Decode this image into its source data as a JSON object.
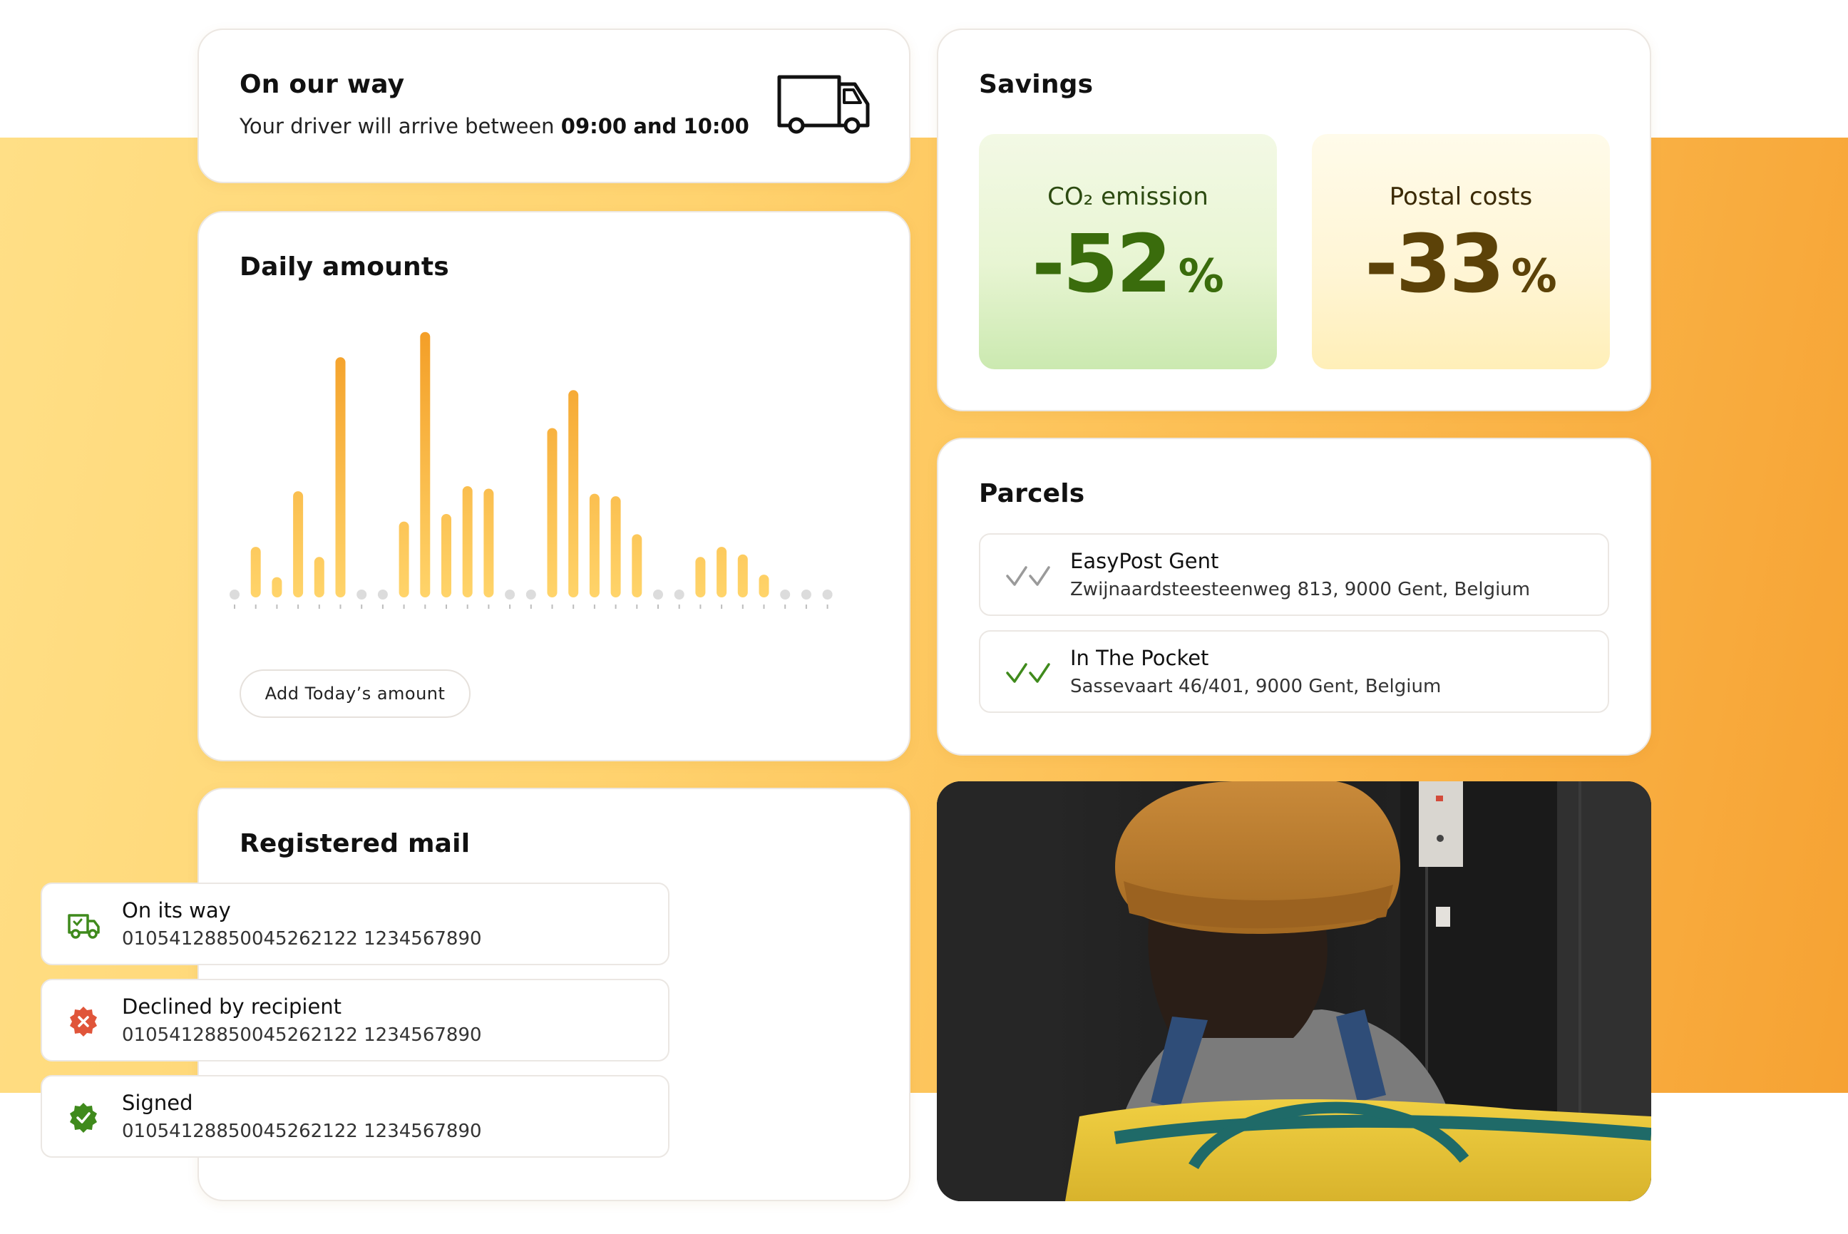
{
  "on_our_way": {
    "title": "On our way",
    "subtitle_prefix": "Your driver will arrive between",
    "time_from": "09:00",
    "and": "and",
    "time_to": "10:00",
    "icon": "delivery-van-icon"
  },
  "daily_amounts": {
    "title": "Daily amounts",
    "add_button": "Add Today’s amount",
    "colors": {
      "bar_light": "#ffd46a",
      "bar_dark": "#f39c24",
      "empty_dot": "#dcdcdc"
    }
  },
  "chart_data": {
    "type": "bar",
    "title": "Daily amounts",
    "xlabel": "",
    "ylabel": "",
    "grid": false,
    "values": [
      0,
      20,
      8,
      42,
      16,
      95,
      0,
      0,
      30,
      105,
      33,
      44,
      43,
      0,
      0,
      67,
      82,
      41,
      40,
      25,
      0,
      0,
      16,
      20,
      17,
      9,
      0,
      0,
      0
    ],
    "ylim": [
      0,
      110
    ]
  },
  "registered_mail": {
    "title": "Registered mail",
    "items": [
      {
        "status": "On its way",
        "code": "01054128850045262122 1234567890",
        "icon": "truck-icon",
        "color": "#3f8a1c"
      },
      {
        "status": "Declined by recipient",
        "code": "01054128850045262122 1234567890",
        "icon": "declined-badge-icon",
        "color": "#e0553a"
      },
      {
        "status": "Signed",
        "code": "01054128850045262122 1234567890",
        "icon": "signed-badge-icon",
        "color": "#3f8a1c"
      }
    ]
  },
  "savings": {
    "title": "Savings",
    "co2": {
      "label": "CO₂ emission",
      "value": "-52",
      "unit": "%"
    },
    "postal": {
      "label": "Postal costs",
      "value": "-33",
      "unit": "%"
    }
  },
  "parcels": {
    "title": "Parcels",
    "items": [
      {
        "name": "EasyPost Gent",
        "address": "Zwijnaardsteesteenweg 813, 9000 Gent, Belgium",
        "icon": "double-check-icon",
        "status_color": "#9a9a9a"
      },
      {
        "name": "In The Pocket",
        "address": "Sassevaart 46/401, 9000 Gent, Belgium",
        "icon": "double-check-icon",
        "status_color": "#3f8a1c"
      }
    ]
  },
  "photo": {
    "icon": "courier-photo"
  }
}
